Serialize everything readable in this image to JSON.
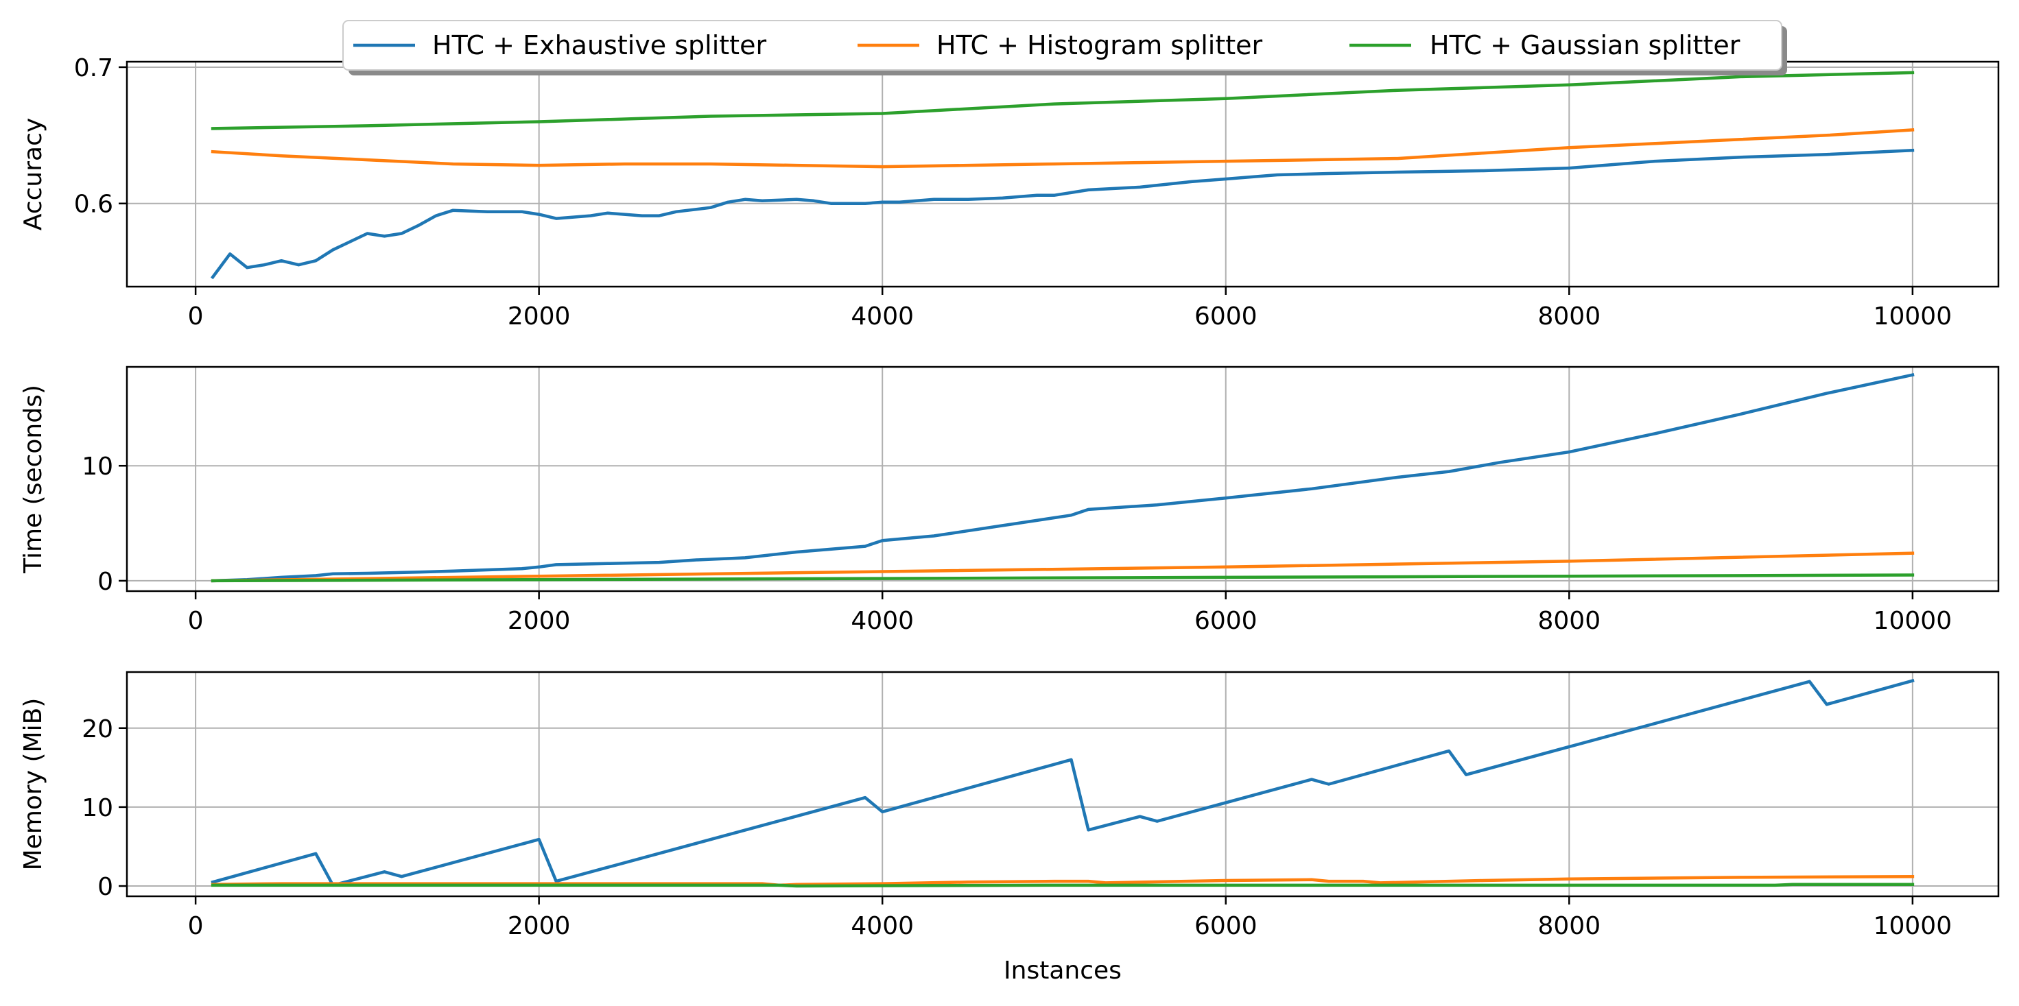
{
  "legend": {
    "placement": "top-center",
    "entries": [
      {
        "label": "HTC + Exhaustive splitter",
        "color": "#1f77b4"
      },
      {
        "label": "HTC + Histogram splitter",
        "color": "#ff7f0e"
      },
      {
        "label": "HTC + Gaussian splitter",
        "color": "#2ca02c"
      }
    ]
  },
  "chart_data": [
    {
      "type": "line",
      "xlabel": "",
      "ylabel": "Accuracy",
      "xlim": [
        -400,
        10500
      ],
      "ylim": [
        0.539,
        0.704
      ],
      "xticks": [
        0,
        2000,
        4000,
        6000,
        8000,
        10000
      ],
      "yticks": [
        0.6,
        0.7
      ],
      "ytick_labels": [
        "0.6",
        "0.7"
      ],
      "grid": true,
      "series": [
        {
          "name": "HTC + Exhaustive splitter",
          "color": "#1f77b4",
          "x": [
            100,
            200,
            300,
            400,
            500,
            600,
            700,
            800,
            900,
            1000,
            1100,
            1200,
            1300,
            1400,
            1500,
            1700,
            1900,
            2000,
            2100,
            2300,
            2400,
            2600,
            2700,
            2800,
            3000,
            3100,
            3200,
            3300,
            3500,
            3600,
            3700,
            3900,
            4000,
            4100,
            4300,
            4500,
            4700,
            4900,
            5000,
            5200,
            5500,
            5800,
            6000,
            6300,
            6600,
            7000,
            7500,
            8000,
            8500,
            9000,
            9500,
            10000
          ],
          "y": [
            0.546,
            0.563,
            0.553,
            0.555,
            0.558,
            0.555,
            0.558,
            0.566,
            0.572,
            0.578,
            0.576,
            0.578,
            0.584,
            0.591,
            0.595,
            0.594,
            0.594,
            0.592,
            0.589,
            0.591,
            0.593,
            0.591,
            0.591,
            0.594,
            0.597,
            0.601,
            0.603,
            0.602,
            0.603,
            0.602,
            0.6,
            0.6,
            0.601,
            0.601,
            0.603,
            0.603,
            0.604,
            0.606,
            0.606,
            0.61,
            0.612,
            0.616,
            0.618,
            0.621,
            0.622,
            0.623,
            0.624,
            0.626,
            0.631,
            0.634,
            0.636,
            0.639
          ]
        },
        {
          "name": "HTC + Histogram splitter",
          "color": "#ff7f0e",
          "x": [
            100,
            500,
            1000,
            1500,
            2000,
            2500,
            3000,
            3500,
            4000,
            4500,
            5000,
            5500,
            6000,
            6500,
            7000,
            7500,
            8000,
            8500,
            9000,
            9500,
            10000
          ],
          "y": [
            0.638,
            0.635,
            0.632,
            0.629,
            0.628,
            0.629,
            0.629,
            0.628,
            0.627,
            0.628,
            0.629,
            0.63,
            0.631,
            0.632,
            0.633,
            0.637,
            0.641,
            0.644,
            0.647,
            0.65,
            0.654
          ]
        },
        {
          "name": "HTC + Gaussian splitter",
          "color": "#2ca02c",
          "x": [
            100,
            1000,
            2000,
            3000,
            4000,
            5000,
            6000,
            7000,
            8000,
            9000,
            10000
          ],
          "y": [
            0.655,
            0.657,
            0.66,
            0.664,
            0.666,
            0.673,
            0.677,
            0.683,
            0.687,
            0.693,
            0.696
          ]
        }
      ]
    },
    {
      "type": "line",
      "xlabel": "",
      "ylabel": "Time (seconds)",
      "xlim": [
        -400,
        10500
      ],
      "ylim": [
        -0.9,
        18.6
      ],
      "xticks": [
        0,
        2000,
        4000,
        6000,
        8000,
        10000
      ],
      "yticks": [
        0,
        10
      ],
      "ytick_labels": [
        "0",
        "10"
      ],
      "grid": true,
      "series": [
        {
          "name": "HTC + Exhaustive splitter",
          "color": "#1f77b4",
          "x": [
            100,
            300,
            500,
            700,
            800,
            1000,
            1300,
            1500,
            1700,
            1900,
            2000,
            2100,
            2400,
            2700,
            2900,
            3200,
            3500,
            3900,
            4000,
            4300,
            4700,
            5100,
            5200,
            5600,
            6000,
            6500,
            7000,
            7300,
            7600,
            8000,
            8500,
            9000,
            9500,
            10000
          ],
          "y": [
            0,
            0.1,
            0.3,
            0.45,
            0.6,
            0.65,
            0.75,
            0.85,
            0.95,
            1.05,
            1.2,
            1.4,
            1.5,
            1.6,
            1.8,
            2.0,
            2.5,
            3.0,
            3.5,
            3.9,
            4.8,
            5.7,
            6.2,
            6.6,
            7.2,
            8.0,
            9.0,
            9.5,
            10.3,
            11.2,
            12.8,
            14.5,
            16.3,
            17.9
          ]
        },
        {
          "name": "HTC + Histogram splitter",
          "color": "#ff7f0e",
          "x": [
            100,
            2000,
            4000,
            6000,
            8000,
            10000
          ],
          "y": [
            0,
            0.4,
            0.8,
            1.2,
            1.7,
            2.4
          ]
        },
        {
          "name": "HTC + Gaussian splitter",
          "color": "#2ca02c",
          "x": [
            100,
            2000,
            4000,
            6000,
            8000,
            10000
          ],
          "y": [
            0,
            0.1,
            0.2,
            0.3,
            0.4,
            0.5
          ]
        }
      ]
    },
    {
      "type": "line",
      "xlabel": "Instances",
      "ylabel": "Memory (MiB)",
      "xlim": [
        -400,
        10500
      ],
      "ylim": [
        -1.3,
        27.1
      ],
      "xticks": [
        0,
        2000,
        4000,
        6000,
        8000,
        10000
      ],
      "yticks": [
        0,
        10,
        20
      ],
      "ytick_labels": [
        "0",
        "10",
        "20"
      ],
      "grid": true,
      "series": [
        {
          "name": "HTC + Exhaustive splitter",
          "color": "#1f77b4",
          "x": [
            100,
            700,
            800,
            1100,
            1200,
            2000,
            2100,
            3900,
            4000,
            5100,
            5200,
            5500,
            5600,
            6500,
            6600,
            7300,
            7400,
            9400,
            9500,
            10000
          ],
          "y": [
            0.5,
            4.1,
            0.1,
            1.8,
            1.2,
            5.9,
            0.6,
            11.2,
            9.4,
            16.0,
            7.1,
            8.8,
            8.2,
            13.5,
            12.9,
            17.1,
            14.1,
            25.9,
            23.0,
            26.0
          ]
        },
        {
          "name": "HTC + Histogram splitter",
          "color": "#ff7f0e",
          "x": [
            100,
            500,
            1000,
            2000,
            3000,
            3300,
            3400,
            3500,
            4000,
            4500,
            5000,
            5200,
            5300,
            6000,
            6500,
            6600,
            6800,
            6900,
            7500,
            8000,
            9000,
            10000
          ],
          "y": [
            0.2,
            0.3,
            0.3,
            0.3,
            0.3,
            0.3,
            0.1,
            0.2,
            0.3,
            0.5,
            0.6,
            0.6,
            0.4,
            0.7,
            0.8,
            0.6,
            0.6,
            0.4,
            0.7,
            0.9,
            1.1,
            1.2
          ]
        },
        {
          "name": "HTC + Gaussian splitter",
          "color": "#2ca02c",
          "x": [
            100,
            3400,
            3500,
            5000,
            7000,
            9000,
            9200,
            9300,
            10000
          ],
          "y": [
            0.1,
            0.1,
            0.0,
            0.1,
            0.1,
            0.1,
            0.1,
            0.2,
            0.2
          ]
        }
      ]
    }
  ]
}
